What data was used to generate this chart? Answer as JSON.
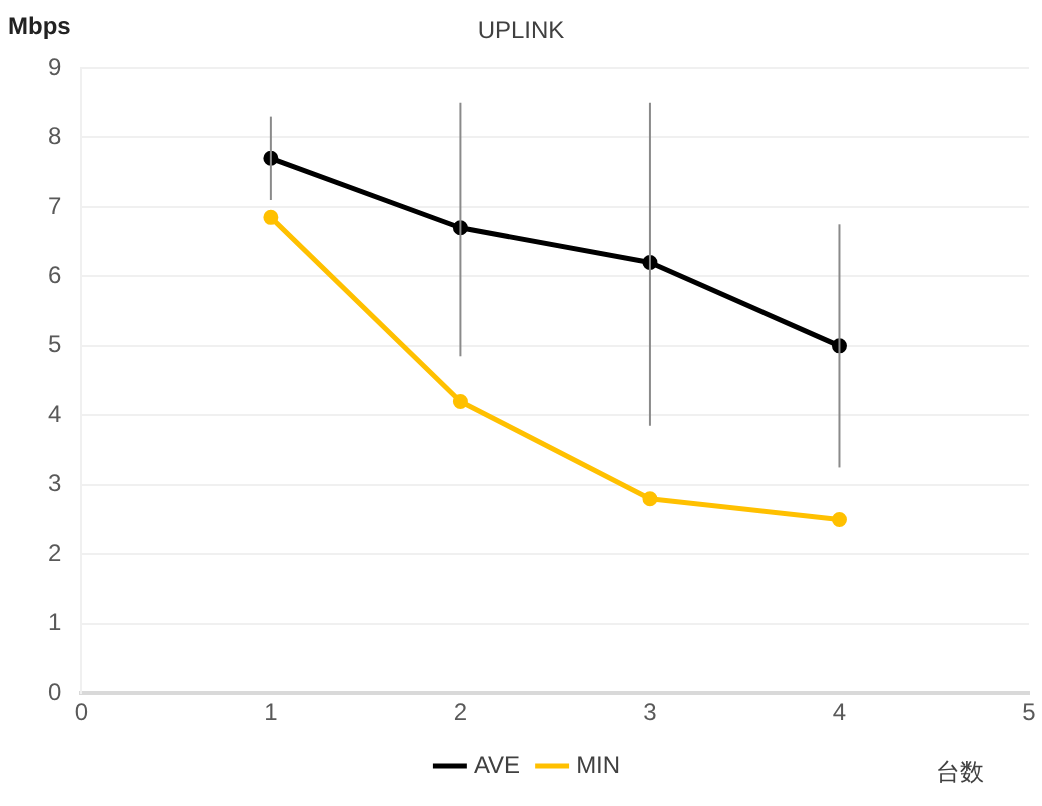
{
  "chart_data": {
    "type": "line",
    "title": "UPLINK",
    "ylabel": "Mbps",
    "xlabel": "台数",
    "x": [
      1,
      2,
      3,
      4
    ],
    "series": [
      {
        "name": "AVE",
        "color": "#000000",
        "values": [
          7.7,
          6.7,
          6.2,
          5.0
        ],
        "errors": [
          [
            7.1,
            8.3
          ],
          [
            4.85,
            8.5
          ],
          [
            3.85,
            8.5
          ],
          [
            3.25,
            6.75
          ]
        ]
      },
      {
        "name": "MIN",
        "color": "#ffc000",
        "values": [
          6.85,
          4.2,
          2.8,
          2.5
        ]
      }
    ],
    "xlim": [
      0,
      5
    ],
    "xticks": [
      0,
      1,
      2,
      3,
      4,
      5
    ],
    "ylim": [
      0,
      9
    ],
    "yticks": [
      0,
      1,
      2,
      3,
      4,
      5,
      6,
      7,
      8,
      9
    ],
    "grid": "y",
    "legend": "bottom",
    "marker": "circle",
    "line_style": "solid"
  }
}
